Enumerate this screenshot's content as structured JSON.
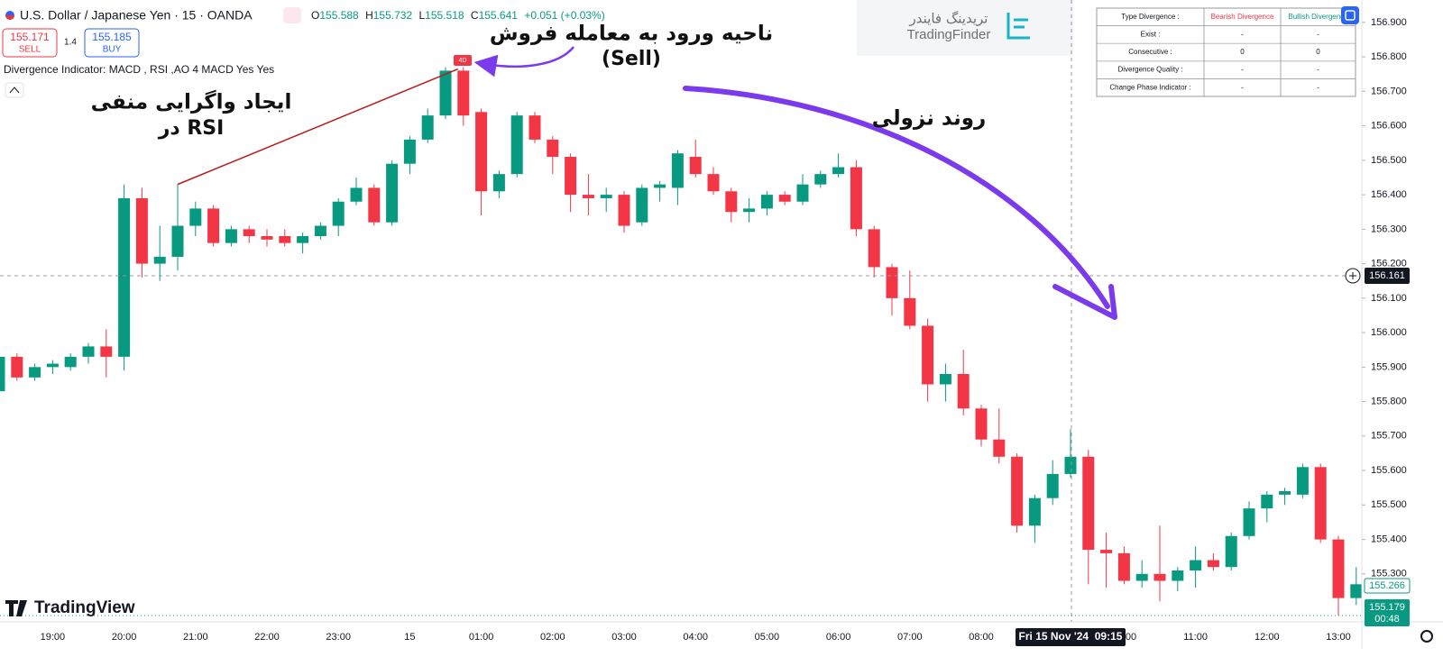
{
  "header": {
    "symbol": "U.S. Dollar / Japanese Yen · 15 · OANDA",
    "ohlc": [
      {
        "key": "O",
        "value": "155.588"
      },
      {
        "key": "H",
        "value": "155.732"
      },
      {
        "key": "L",
        "value": "155.518"
      },
      {
        "key": "C",
        "value": "155.641"
      }
    ],
    "change": "+0.051 (+0.03%)"
  },
  "trade": {
    "sell_price": "155.171",
    "sell": "SELL",
    "spread": "1.4",
    "buy_price": "155.185",
    "buy": "BUY"
  },
  "indicator": "Divergence Indicator: MACD , RSI ,AO 4 MACD Yes Yes",
  "signal": "4D",
  "watermark": {
    "fa": "تریدینگ فایندر",
    "en": "TradingFinder"
  },
  "logo": "TradingView",
  "table": {
    "header": [
      "Type Divergence :",
      "Bearish Divergence",
      "Bullish Divergence"
    ],
    "rows": [
      [
        "Exist :",
        "-",
        "-"
      ],
      [
        "Consecutive :",
        "0",
        "0"
      ],
      [
        "Divergence Quality :",
        "-",
        "-"
      ],
      [
        "Change Phase Indicator :",
        "-",
        "-"
      ]
    ]
  },
  "annotations": {
    "entry": "ناحیه ورود به معامله فروش",
    "entry_sub": "(Sell)",
    "divergence": "ایجاد واگرایی منفی",
    "divergence_sub": "در RSI",
    "trend": "روند نزولی"
  },
  "price_labels": {
    "crosshair": "156.161",
    "previous": "155.266",
    "last": "155.179",
    "countdown": "00:48"
  },
  "crosshair_time": "Fri 15 Nov '24  09:15",
  "chart_data": {
    "type": "candlestick",
    "categories": [
      null,
      null,
      null,
      "19:00",
      null,
      null,
      null,
      "20:00",
      null,
      null,
      null,
      "21:00",
      null,
      null,
      null,
      "22:00",
      null,
      null,
      null,
      "23:00",
      null,
      null,
      null,
      "15",
      null,
      null,
      null,
      "01:00",
      null,
      null,
      null,
      "02:00",
      null,
      null,
      null,
      "03:00",
      null,
      null,
      null,
      "04:00",
      null,
      null,
      null,
      "05:00",
      null,
      null,
      null,
      "06:00",
      null,
      null,
      null,
      "07:00",
      null,
      null,
      null,
      "08:00",
      null,
      null,
      null,
      null,
      null,
      null,
      null,
      "10:00",
      null,
      null,
      null,
      "11:00",
      null,
      null,
      null,
      "12:00",
      null,
      null,
      null,
      "13:00",
      null
    ],
    "open": [
      155.83,
      155.93,
      155.87,
      155.9,
      155.9,
      155.93,
      155.96,
      155.93,
      156.39,
      156.2,
      156.22,
      156.31,
      156.36,
      156.26,
      156.3,
      156.28,
      156.28,
      156.26,
      156.28,
      156.31,
      156.38,
      156.42,
      156.32,
      156.49,
      156.56,
      156.63,
      156.76,
      156.64,
      156.41,
      156.46,
      156.63,
      156.56,
      156.51,
      156.4,
      156.39,
      156.4,
      156.32,
      156.42,
      156.42,
      156.51,
      156.46,
      156.41,
      156.35,
      156.36,
      156.4,
      156.38,
      156.43,
      156.46,
      156.48,
      156.3,
      156.19,
      156.1,
      156.02,
      155.85,
      155.88,
      155.78,
      155.69,
      155.64,
      155.44,
      155.52,
      155.59,
      155.64,
      155.37,
      155.36,
      155.28,
      155.3,
      155.28,
      155.31,
      155.34,
      155.32,
      155.41,
      155.49,
      155.53,
      155.53,
      155.61,
      155.4,
      155.23
    ],
    "high": [
      155.95,
      155.94,
      155.91,
      155.92,
      155.94,
      155.97,
      156.01,
      156.43,
      156.42,
      156.31,
      156.43,
      156.38,
      156.37,
      156.31,
      156.31,
      156.3,
      156.3,
      156.29,
      156.32,
      156.39,
      156.45,
      156.43,
      156.5,
      156.57,
      156.65,
      156.77,
      156.77,
      156.65,
      156.47,
      156.64,
      156.64,
      156.57,
      156.52,
      156.46,
      156.42,
      156.41,
      156.43,
      156.44,
      156.53,
      156.56,
      156.48,
      156.42,
      156.39,
      156.41,
      156.41,
      156.46,
      156.47,
      156.52,
      156.5,
      156.31,
      156.2,
      156.18,
      156.04,
      155.91,
      155.95,
      155.79,
      155.78,
      155.65,
      155.53,
      155.63,
      155.72,
      155.66,
      155.42,
      155.38,
      155.34,
      155.44,
      155.32,
      155.38,
      155.36,
      155.42,
      155.51,
      155.54,
      155.55,
      155.62,
      155.62,
      155.41,
      155.32
    ],
    "low": [
      155.82,
      155.86,
      155.86,
      155.88,
      155.89,
      155.91,
      155.87,
      155.89,
      156.16,
      156.15,
      156.18,
      156.28,
      156.25,
      156.25,
      156.26,
      156.25,
      156.25,
      156.23,
      156.27,
      156.28,
      156.37,
      156.31,
      156.31,
      156.46,
      156.55,
      156.62,
      156.6,
      156.34,
      156.39,
      156.45,
      156.55,
      156.46,
      156.35,
      156.34,
      156.35,
      156.29,
      156.31,
      156.38,
      156.37,
      156.45,
      156.4,
      156.32,
      156.32,
      156.34,
      156.37,
      156.37,
      156.42,
      156.45,
      156.28,
      156.16,
      156.05,
      156.01,
      155.8,
      155.8,
      155.76,
      155.67,
      155.62,
      155.42,
      155.39,
      155.5,
      155.58,
      155.27,
      155.26,
      155.27,
      155.26,
      155.22,
      155.25,
      155.26,
      155.31,
      155.31,
      155.4,
      155.45,
      155.5,
      155.52,
      155.39,
      155.18,
      155.21
    ],
    "close": [
      155.93,
      155.87,
      155.9,
      155.91,
      155.93,
      155.96,
      155.93,
      156.39,
      156.2,
      156.22,
      156.31,
      156.36,
      156.26,
      156.3,
      156.28,
      156.27,
      156.26,
      156.28,
      156.31,
      156.38,
      156.42,
      156.32,
      156.49,
      156.56,
      156.63,
      156.76,
      156.63,
      156.41,
      156.46,
      156.63,
      156.56,
      156.51,
      156.4,
      156.39,
      156.4,
      156.31,
      156.42,
      156.43,
      156.52,
      156.46,
      156.41,
      156.35,
      156.36,
      156.4,
      156.38,
      156.43,
      156.46,
      156.48,
      156.3,
      156.19,
      156.1,
      156.02,
      155.85,
      155.88,
      155.78,
      155.69,
      155.64,
      155.44,
      155.52,
      155.59,
      155.64,
      155.37,
      155.36,
      155.28,
      155.3,
      155.28,
      155.31,
      155.34,
      155.32,
      155.41,
      155.49,
      155.53,
      155.54,
      155.61,
      155.4,
      155.23,
      155.27
    ],
    "up_color": "#089981",
    "down_color": "#f23645",
    "ylim": [
      155.161,
      156.965
    ],
    "yticks": [
      {
        "value": 156.9,
        "label": "156.900"
      },
      {
        "value": 156.8,
        "label": "156.800"
      },
      {
        "value": 156.7,
        "label": "156.700"
      },
      {
        "value": 156.6,
        "label": "156.600"
      },
      {
        "value": 156.5,
        "label": "156.500"
      },
      {
        "value": 156.4,
        "label": "156.400"
      },
      {
        "value": 156.3,
        "label": "156.300"
      },
      {
        "value": 156.2,
        "label": "156.200"
      },
      {
        "value": 156.1,
        "label": "156.100"
      },
      {
        "value": 156.0,
        "label": "156.000"
      },
      {
        "value": 155.9,
        "label": "155.900"
      },
      {
        "value": 155.8,
        "label": "155.800"
      },
      {
        "value": 155.7,
        "label": "155.700"
      },
      {
        "value": 155.6,
        "label": "155.600"
      },
      {
        "value": 155.5,
        "label": "155.500"
      },
      {
        "value": 155.4,
        "label": "155.400"
      },
      {
        "value": 155.3,
        "label": "155.300"
      }
    ],
    "grid": false
  }
}
